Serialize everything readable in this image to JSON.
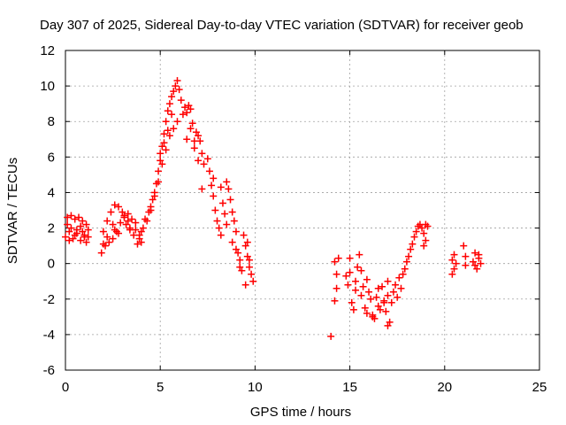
{
  "chart_data": {
    "type": "scatter",
    "title": "Day 307 of 2025, Sidereal Day-to-day VTEC variation (SDTVAR) for receiver geob",
    "xlabel": "GPS time / hours",
    "ylabel": "SDTVAR / TECUs",
    "xlim": [
      0,
      25
    ],
    "ylim": [
      -6,
      12
    ],
    "xticks": [
      "0",
      "5",
      "10",
      "15",
      "20",
      "25"
    ],
    "yticks": [
      "-6",
      "-4",
      "-2",
      "0",
      "2",
      "4",
      "6",
      "8",
      "10",
      "12"
    ],
    "grid": true,
    "marker": "+",
    "color": "#ff0000",
    "series": [
      {
        "name": "SDTVAR",
        "x": [
          0.0,
          0.1,
          0.2,
          0.3,
          0.4,
          0.5,
          0.6,
          0.7,
          0.8,
          0.9,
          1.0,
          1.1,
          1.2,
          0.3,
          0.6,
          0.9,
          1.1,
          0.1,
          0.2,
          0.5,
          0.8,
          1.0,
          1.2,
          1.9,
          2.0,
          2.1,
          2.2,
          2.3,
          2.4,
          2.5,
          2.6,
          2.7,
          2.8,
          2.9,
          3.0,
          3.1,
          3.2,
          3.3,
          3.4,
          3.5,
          3.6,
          3.7,
          3.8,
          3.9,
          4.0,
          4.1,
          4.2,
          2.2,
          2.5,
          2.8,
          3.1,
          3.4,
          3.7,
          4.0,
          2.0,
          2.6,
          3.3,
          3.9,
          4.3,
          4.4,
          4.5,
          4.6,
          4.7,
          4.8,
          4.9,
          5.0,
          5.1,
          5.2,
          5.3,
          5.4,
          5.5,
          5.6,
          5.7,
          5.8,
          5.9,
          6.0,
          6.1,
          4.5,
          4.7,
          4.9,
          5.1,
          5.3,
          5.5,
          5.7,
          5.9,
          5.0,
          5.2,
          5.4,
          5.6,
          6.2,
          6.3,
          6.4,
          6.5,
          6.6,
          6.7,
          6.8,
          6.9,
          7.0,
          7.1,
          7.2,
          7.3,
          6.4,
          6.6,
          6.8,
          7.0,
          7.2,
          7.5,
          7.6,
          7.7,
          7.8,
          7.9,
          8.0,
          8.1,
          8.2,
          8.3,
          8.4,
          8.5,
          8.6,
          8.7,
          8.8,
          8.9,
          9.0,
          9.1,
          9.2,
          9.3,
          7.8,
          8.2,
          8.5,
          8.8,
          9.0,
          9.2,
          9.4,
          9.5,
          9.6,
          9.7,
          9.8,
          9.9,
          9.5,
          9.7,
          9.6,
          14.0,
          14.2,
          14.3,
          14.4,
          14.3,
          14.2,
          14.8,
          14.9,
          15.0,
          15.1,
          15.2,
          15.3,
          15.4,
          15.5,
          15.6,
          15.7,
          15.8,
          15.9,
          16.0,
          16.1,
          16.2,
          16.3,
          16.4,
          16.5,
          16.6,
          16.7,
          16.8,
          16.9,
          17.0,
          17.1,
          17.2,
          15.0,
          15.3,
          15.6,
          15.9,
          16.2,
          16.5,
          16.8,
          17.0,
          17.0,
          17.3,
          17.4,
          17.5,
          17.6,
          17.7,
          17.8,
          17.9,
          18.0,
          18.1,
          18.2,
          18.3,
          18.4,
          18.5,
          18.6,
          18.7,
          18.8,
          18.9,
          19.0,
          19.1,
          18.9,
          19.0,
          20.4,
          20.4,
          20.5,
          20.5,
          20.6,
          21.0,
          21.1,
          21.1,
          21.5,
          21.6,
          21.7,
          21.8,
          21.9,
          21.6,
          21.8
        ],
        "y": [
          1.5,
          2.6,
          1.8,
          2.7,
          1.4,
          2.5,
          1.7,
          2.6,
          1.3,
          2.4,
          1.6,
          2.2,
          1.5,
          2.0,
          1.9,
          1.8,
          1.2,
          2.2,
          1.3,
          1.6,
          2.1,
          1.5,
          1.9,
          0.6,
          1.8,
          1.0,
          2.4,
          1.2,
          2.9,
          1.4,
          3.3,
          1.8,
          3.2,
          2.3,
          2.9,
          2.6,
          2.2,
          2.8,
          1.9,
          2.5,
          1.6,
          2.3,
          1.1,
          1.4,
          1.8,
          2.0,
          2.5,
          1.5,
          2.2,
          1.7,
          2.7,
          2.0,
          1.9,
          1.2,
          1.1,
          1.9,
          2.4,
          1.6,
          2.4,
          2.9,
          3.2,
          3.6,
          4.0,
          4.5,
          5.2,
          5.8,
          6.6,
          7.3,
          8.0,
          8.6,
          9.0,
          9.4,
          9.7,
          10.0,
          10.3,
          9.8,
          9.2,
          3.0,
          3.8,
          4.6,
          5.6,
          6.4,
          7.2,
          7.6,
          8.0,
          6.2,
          6.8,
          7.5,
          8.4,
          8.4,
          8.8,
          8.5,
          8.9,
          8.7,
          7.9,
          6.9,
          7.4,
          7.2,
          6.9,
          6.2,
          5.6,
          7.0,
          7.6,
          6.5,
          5.8,
          4.2,
          5.9,
          5.2,
          4.4,
          3.8,
          3.0,
          2.4,
          2.0,
          1.6,
          3.4,
          2.8,
          4.6,
          4.2,
          3.6,
          2.9,
          2.4,
          1.8,
          0.6,
          0.2,
          -0.4,
          4.8,
          4.3,
          2.2,
          1.2,
          0.8,
          -0.2,
          1.6,
          1.0,
          0.4,
          -0.2,
          -0.6,
          -1.0,
          -1.2,
          0.2,
          1.2,
          -4.1,
          0.1,
          -0.6,
          0.3,
          -1.4,
          -2.1,
          -0.7,
          -1.2,
          -0.5,
          -2.2,
          -2.6,
          -1.0,
          -0.2,
          0.5,
          -1.8,
          -1.3,
          -2.5,
          -0.9,
          -1.6,
          -2.0,
          -2.9,
          -3.1,
          -1.9,
          -2.4,
          -2.6,
          -1.3,
          -2.1,
          -2.7,
          -1.8,
          -3.3,
          -2.2,
          0.3,
          -1.5,
          -0.4,
          -2.8,
          -3.0,
          -1.4,
          -2.2,
          -1.0,
          -3.5,
          -1.6,
          -1.2,
          -1.9,
          -0.8,
          -1.4,
          -0.6,
          -0.3,
          0.1,
          0.4,
          0.8,
          1.1,
          1.5,
          1.8,
          2.1,
          2.2,
          2.0,
          1.7,
          1.3,
          2.1,
          1.0,
          2.2,
          0.2,
          -0.6,
          0.5,
          -0.3,
          0.0,
          1.0,
          0.4,
          -0.1,
          0.1,
          0.6,
          -0.3,
          0.3,
          0.0,
          -0.1,
          0.5
        ]
      }
    ]
  }
}
